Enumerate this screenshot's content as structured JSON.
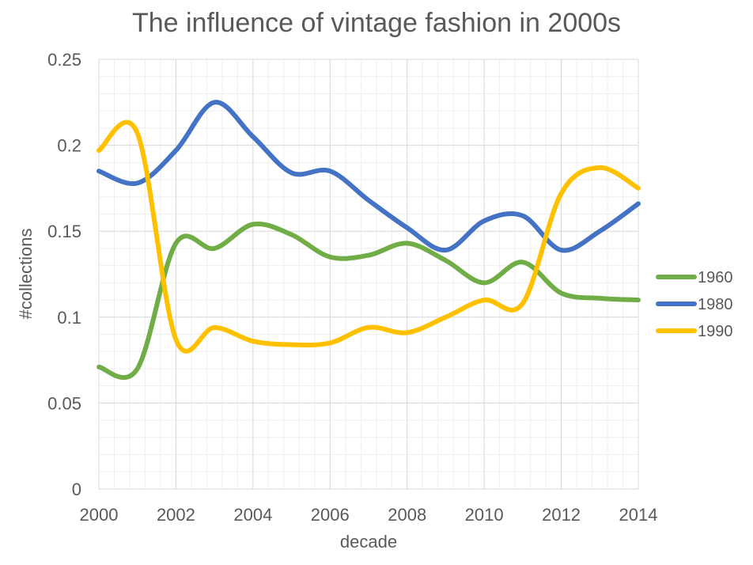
{
  "chart_data": {
    "type": "line",
    "title": "The influence of vintage fashion in 2000s",
    "xlabel": "decade",
    "ylabel": "#collections",
    "xlim": [
      2000,
      2014
    ],
    "ylim": [
      0,
      0.25
    ],
    "x_ticks": [
      "2000",
      "2002",
      "2004",
      "2006",
      "2008",
      "2010",
      "2012",
      "2014"
    ],
    "y_ticks": [
      "0",
      "0.05",
      "0.1",
      "0.15",
      "0.2",
      "0.25"
    ],
    "grid": true,
    "legend_position": "right",
    "x": [
      2000,
      2001,
      2002,
      2003,
      2004,
      2005,
      2006,
      2007,
      2008,
      2009,
      2010,
      2011,
      2012,
      2013,
      2014
    ],
    "series": [
      {
        "name": "1960",
        "color": "#70AD47",
        "values": [
          0.071,
          0.07,
          0.143,
          0.14,
          0.154,
          0.148,
          0.135,
          0.136,
          0.143,
          0.133,
          0.12,
          0.132,
          0.114,
          0.111,
          0.11
        ]
      },
      {
        "name": "1980",
        "color": "#4472C4",
        "values": [
          0.185,
          0.178,
          0.197,
          0.225,
          0.205,
          0.184,
          0.185,
          0.168,
          0.152,
          0.139,
          0.156,
          0.159,
          0.139,
          0.15,
          0.166
        ]
      },
      {
        "name": "1990",
        "color": "#FFC000",
        "values": [
          0.197,
          0.207,
          0.087,
          0.094,
          0.086,
          0.084,
          0.085,
          0.094,
          0.091,
          0.1,
          0.11,
          0.108,
          0.172,
          0.187,
          0.175
        ]
      }
    ]
  }
}
